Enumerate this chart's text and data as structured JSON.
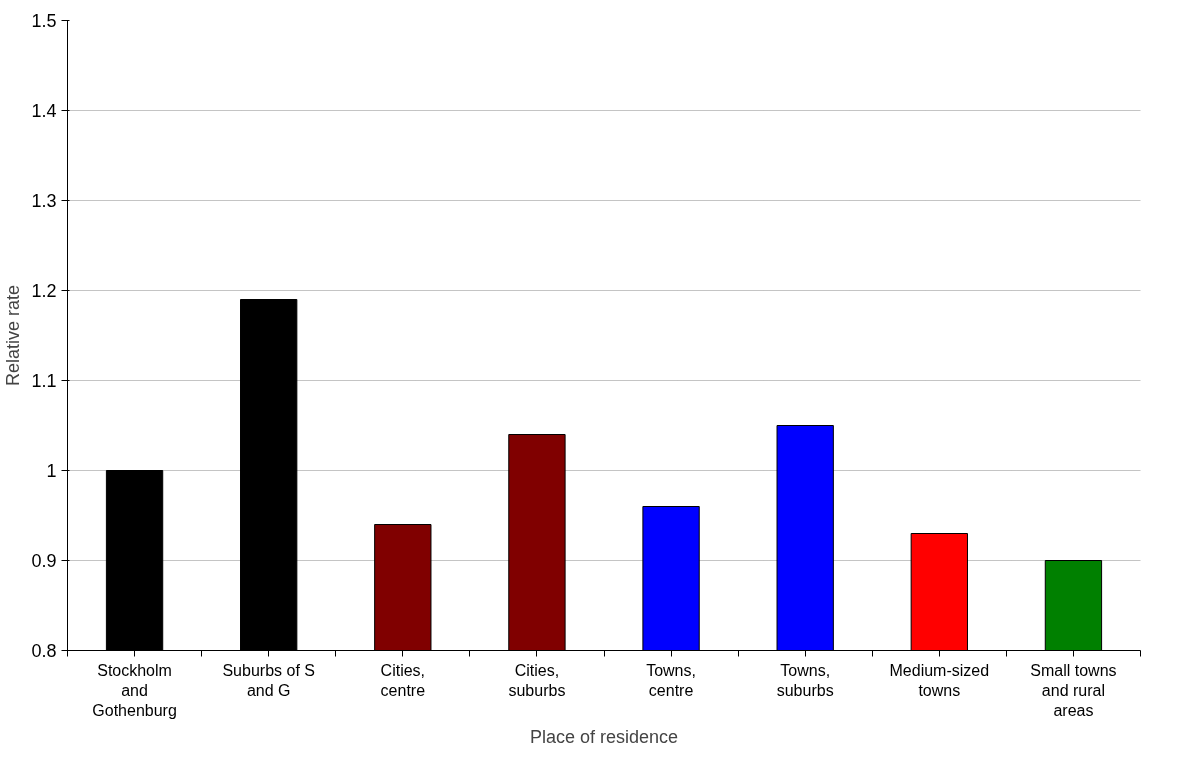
{
  "chart_data": {
    "type": "bar",
    "xlabel": "Place of residence",
    "ylabel": "Relative rate",
    "categories": [
      "Stockholm and Gothenburg",
      "Suburbs of S and G",
      "Cities, centre",
      "Cities, suburbs",
      "Towns, centre",
      "Towns, suburbs",
      "Medium-sized towns",
      "Small towns and rural areas"
    ],
    "values": [
      1.0,
      1.19,
      0.94,
      1.04,
      0.96,
      1.05,
      0.93,
      0.9
    ],
    "colors": [
      "#000000",
      "#000000",
      "#800000",
      "#800000",
      "#0000ff",
      "#0000ff",
      "#ff0000",
      "#008000"
    ],
    "ylim": [
      0.8,
      1.5
    ],
    "yticks": [
      0.8,
      0.9,
      1,
      1.1,
      1.2,
      1.3,
      1.4,
      1.5
    ],
    "grid": "y"
  }
}
